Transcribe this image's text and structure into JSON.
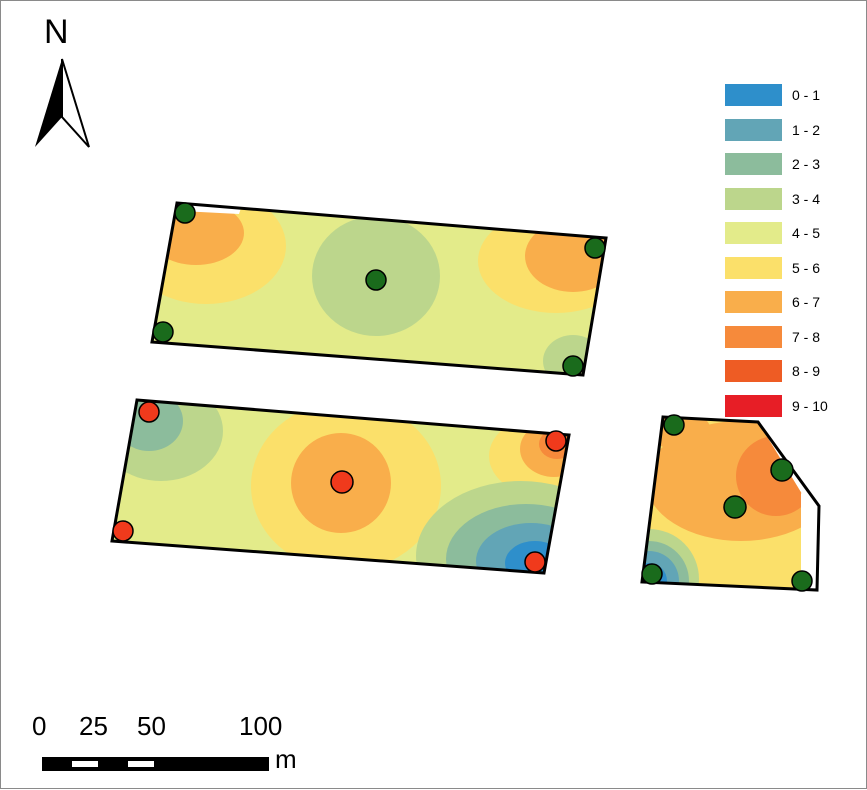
{
  "north_arrow": {
    "label": "N",
    "icon": "north-arrow-icon"
  },
  "legend": {
    "items": [
      {
        "label": "0 - 1",
        "color": "#2e8fcb"
      },
      {
        "label": "1 - 2",
        "color": "#62a5b6"
      },
      {
        "label": "2 - 3",
        "color": "#8cbc9c"
      },
      {
        "label": "3 - 4",
        "color": "#bcd68c"
      },
      {
        "label": "4 - 5",
        "color": "#e3eb8a"
      },
      {
        "label": "5 - 6",
        "color": "#fbe06a"
      },
      {
        "label": "6 - 7",
        "color": "#f9ae4b"
      },
      {
        "label": "7 - 8",
        "color": "#f68a3b"
      },
      {
        "label": "8 - 9",
        "color": "#ee5c24"
      },
      {
        "label": "9 - 10",
        "color": "#e71e26"
      }
    ]
  },
  "scale_bar": {
    "ticks": [
      "0",
      "25",
      "50",
      "100"
    ],
    "unit": "m"
  },
  "markers": {
    "green": "#1a6b1c",
    "red": "#f03a1c"
  }
}
